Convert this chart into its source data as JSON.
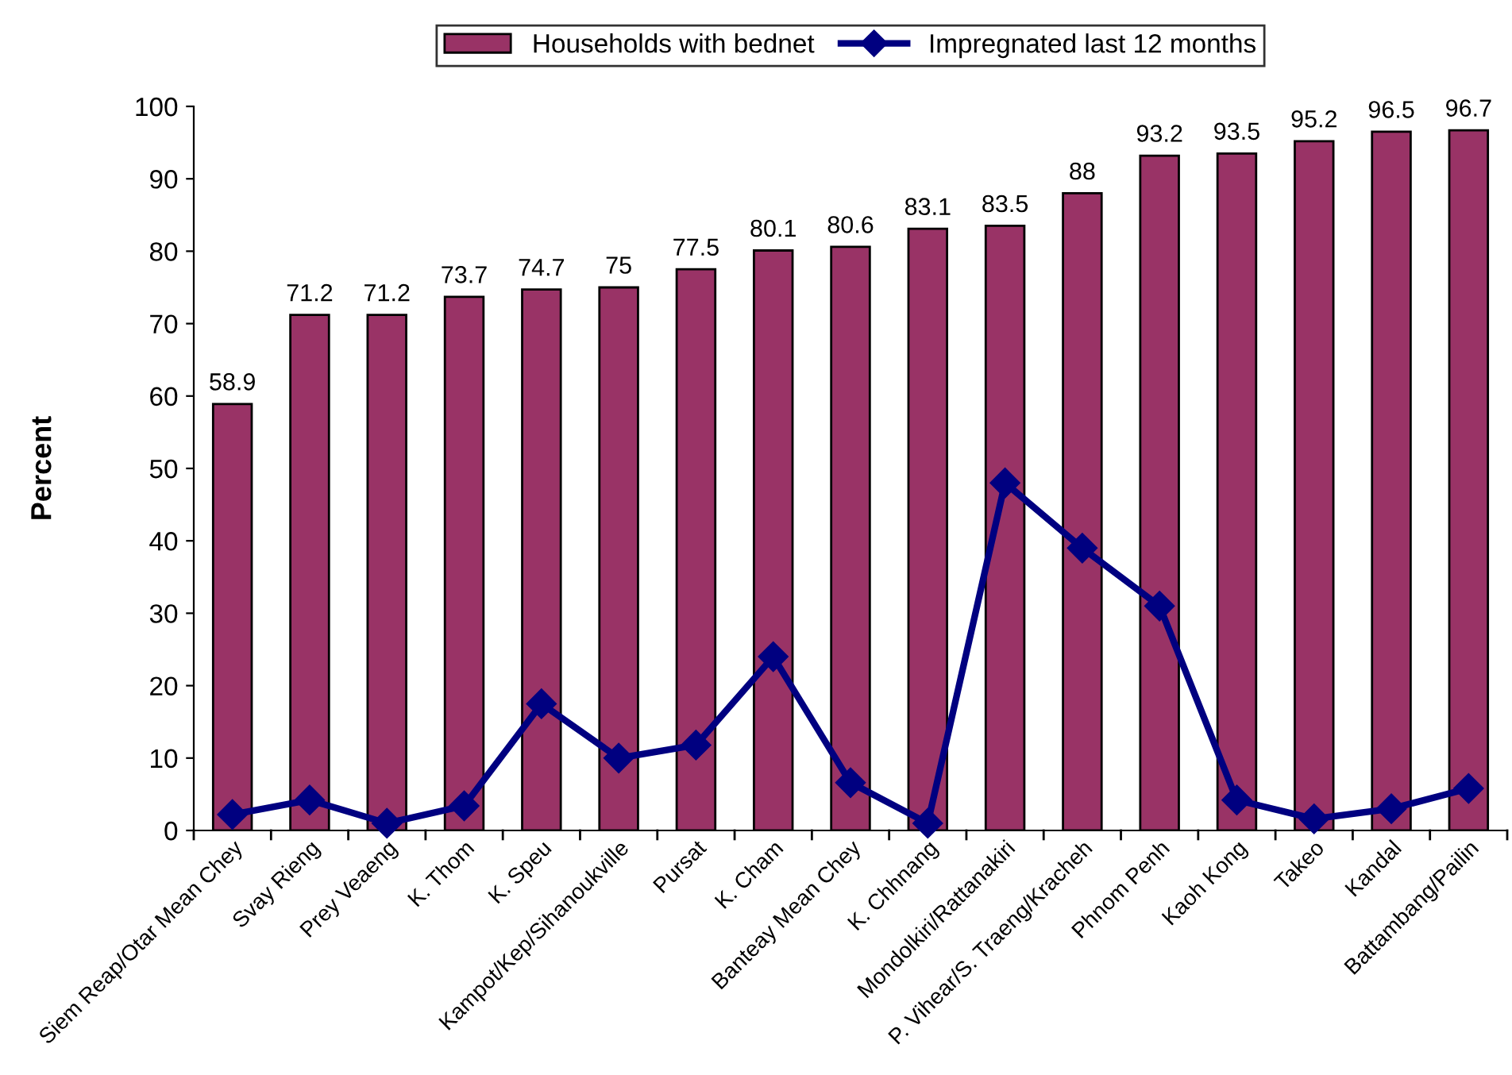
{
  "chart_data": {
    "type": "bar",
    "ylabel": "Percent",
    "categories": [
      "Siem Reap/Otar Mean Chey",
      "Svay Rieng",
      "Prey Veaeng",
      "K. Thom",
      "K. Speu",
      "Kampot/Kep/Sihanoukville",
      "Pursat",
      "K. Cham",
      "Banteay Mean Chey",
      "K. Chhnang",
      "Mondolkiri/Rattanakiri",
      "P. Vihear/S. Traeng/Kracheh",
      "Phnom Penh",
      "Kaoh Kong",
      "Takeo",
      "Kandal",
      "Battambang/Pailin"
    ],
    "series": [
      {
        "name": "Households with bednet",
        "color": "#993366",
        "values": [
          58.9,
          71.2,
          71.2,
          73.7,
          74.7,
          75,
          77.5,
          80.1,
          80.6,
          83.1,
          83.5,
          88,
          93.2,
          93.5,
          95.2,
          96.5,
          96.7
        ],
        "value_labels": [
          "58.9",
          "71.2",
          "71.2",
          "73.7",
          "74.7",
          "75",
          "77.5",
          "80.1",
          "80.6",
          "83.1",
          "83.5",
          "88",
          "93.2",
          "93.5",
          "95.2",
          "96.5",
          "96.7"
        ]
      },
      {
        "name": "Impregnated last 12 months",
        "type": "line",
        "color": "#000080",
        "marker": "diamond",
        "values": [
          2.2,
          4.2,
          1.0,
          3.4,
          17.5,
          10,
          11.8,
          24,
          6.6,
          1.0,
          48,
          39,
          31,
          4.2,
          1.6,
          3,
          5.8
        ]
      }
    ],
    "ylim": [
      0,
      100
    ],
    "yticks": [
      0,
      10,
      20,
      30,
      40,
      50,
      60,
      70,
      80,
      90,
      100
    ],
    "grid": false,
    "legend": "top"
  }
}
